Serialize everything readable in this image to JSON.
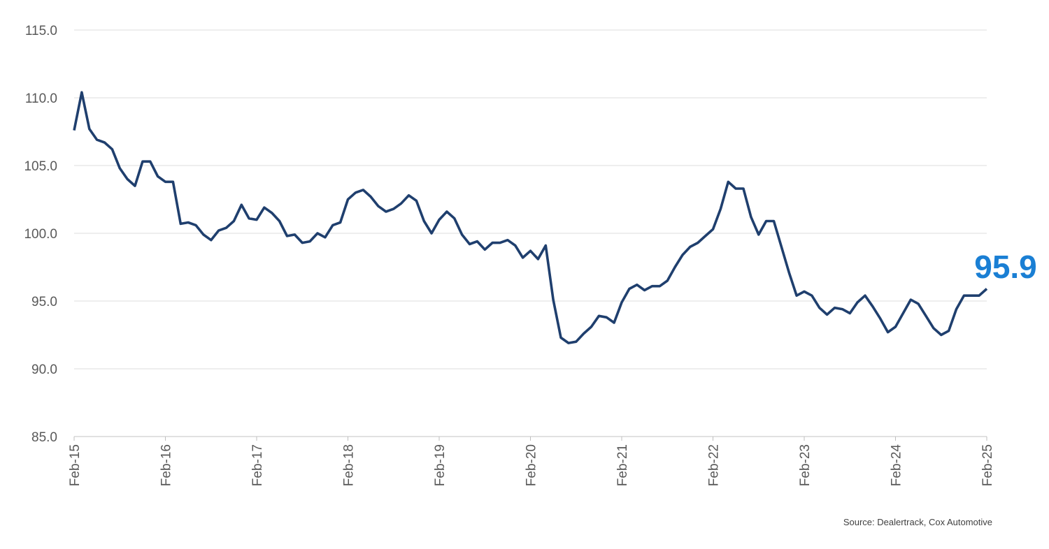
{
  "chart_data": {
    "type": "line",
    "title": "",
    "xlabel": "",
    "ylabel": "",
    "ylim": [
      85,
      115
    ],
    "yticks": [
      "115.0",
      "110.0",
      "105.0",
      "100.0",
      "95.0",
      "90.0",
      "85.0"
    ],
    "ytick_values": [
      115,
      110,
      105,
      100,
      95,
      90,
      85
    ],
    "xticks": [
      "Feb-15",
      "Feb-16",
      "Feb-17",
      "Feb-18",
      "Feb-19",
      "Feb-20",
      "Feb-21",
      "Feb-22",
      "Feb-23",
      "Feb-24",
      "Feb-25"
    ],
    "x_start": "Feb-15",
    "x_end": "Feb-25",
    "frequency": "monthly",
    "grid": true,
    "series": [
      {
        "name": "Index",
        "color": "#1f3f6e",
        "values": [
          107.6,
          110.4,
          107.7,
          106.9,
          106.7,
          106.2,
          104.8,
          104.0,
          103.5,
          105.3,
          105.3,
          104.2,
          103.8,
          103.8,
          100.7,
          100.8,
          100.6,
          99.9,
          99.5,
          100.2,
          100.4,
          100.9,
          102.1,
          101.1,
          101.0,
          101.9,
          101.5,
          100.9,
          99.8,
          99.9,
          99.3,
          99.4,
          100.0,
          99.7,
          100.6,
          100.8,
          102.5,
          103.0,
          103.2,
          102.7,
          102.0,
          101.6,
          101.8,
          102.2,
          102.8,
          102.4,
          100.9,
          100.0,
          101.0,
          101.6,
          101.1,
          99.9,
          99.2,
          99.4,
          98.8,
          99.3,
          99.3,
          99.5,
          99.1,
          98.2,
          98.7,
          98.1,
          99.1,
          95.1,
          92.3,
          91.9,
          92.0,
          92.6,
          93.1,
          93.9,
          93.8,
          93.4,
          94.9,
          95.9,
          96.2,
          95.8,
          96.1,
          96.1,
          96.5,
          97.5,
          98.4,
          99.0,
          99.3,
          99.8,
          100.3,
          101.8,
          103.8,
          103.3,
          103.3,
          101.2,
          99.9,
          100.9,
          100.9,
          99.0,
          97.1,
          95.4,
          95.7,
          95.4,
          94.5,
          94.0,
          94.5,
          94.4,
          94.1,
          94.9,
          95.4,
          94.6,
          93.7,
          92.7,
          93.1,
          94.1,
          95.1,
          94.8,
          93.9,
          93.0,
          92.5,
          92.8,
          94.4,
          95.4,
          95.4,
          95.4,
          95.9
        ]
      }
    ],
    "annotation": {
      "text": "95.9",
      "color": "#1a7fd4"
    },
    "source": "Source: Dealertrack, Cox Automotive"
  }
}
